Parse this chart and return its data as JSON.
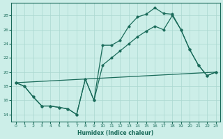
{
  "xlabel": "Humidex (Indice chaleur)",
  "bg_color": "#cceee8",
  "grid_color": "#aad8d0",
  "line_color": "#1a6b5a",
  "xlim": [
    -0.5,
    23.5
  ],
  "ylim": [
    13.0,
    29.8
  ],
  "yticks": [
    14,
    16,
    18,
    20,
    22,
    24,
    26,
    28
  ],
  "xticks": [
    0,
    1,
    2,
    3,
    4,
    5,
    6,
    7,
    8,
    9,
    10,
    11,
    12,
    13,
    14,
    15,
    16,
    17,
    18,
    19,
    20,
    21,
    22,
    23
  ],
  "line1_x": [
    0,
    1,
    2,
    3,
    4,
    5,
    6,
    7,
    8,
    9,
    10,
    11,
    12,
    13,
    14,
    15,
    16,
    17,
    18,
    19,
    20,
    21,
    22,
    23
  ],
  "line1_y": [
    18.5,
    18.0,
    16.5,
    15.2,
    15.2,
    15.0,
    14.8,
    14.0,
    19.0,
    16.0,
    23.8,
    23.8,
    24.5,
    26.5,
    27.8,
    28.2,
    29.1,
    28.3,
    28.2,
    26.0,
    23.2,
    21.0,
    19.5,
    20.0
  ],
  "line2_x": [
    0,
    1,
    2,
    3,
    4,
    5,
    6,
    7,
    8,
    9,
    10,
    11,
    12,
    13,
    14,
    15,
    16,
    17,
    18,
    19,
    20,
    21,
    22,
    23
  ],
  "line2_y": [
    18.5,
    18.0,
    16.5,
    15.2,
    15.2,
    15.0,
    14.8,
    14.0,
    19.0,
    16.0,
    21.0,
    22.0,
    23.0,
    24.0,
    25.0,
    25.8,
    26.5,
    26.0,
    28.0,
    26.0,
    23.2,
    21.0,
    19.5,
    20.0
  ],
  "line3_x": [
    0,
    23
  ],
  "line3_y": [
    18.5,
    20.0
  ],
  "marker_size": 2.5,
  "lw": 0.9
}
